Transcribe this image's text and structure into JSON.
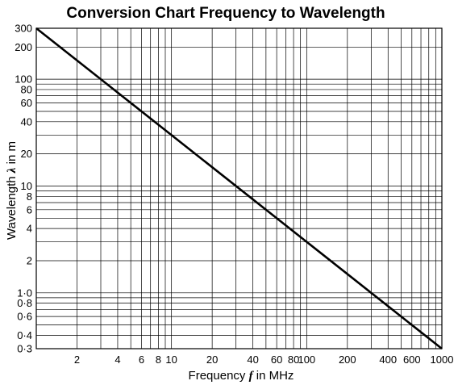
{
  "chart_data": {
    "type": "line",
    "title": "Conversion Chart Frequency to Wavelength",
    "xlabel": {
      "prefix": "Frequency ",
      "symbol": "f",
      "suffix": " in MHz"
    },
    "ylabel": {
      "prefix": "Wavelength ",
      "symbol": "λ",
      "suffix": " in m"
    },
    "x_scale": "log",
    "y_scale": "log",
    "xlim": [
      1,
      1000
    ],
    "ylim": [
      0.3,
      300
    ],
    "grid": true,
    "x_ticks": [
      {
        "value": 2,
        "label": "2"
      },
      {
        "value": 4,
        "label": "4"
      },
      {
        "value": 6,
        "label": "6"
      },
      {
        "value": 8,
        "label": "8"
      },
      {
        "value": 10,
        "label": "10"
      },
      {
        "value": 20,
        "label": "20"
      },
      {
        "value": 40,
        "label": "40"
      },
      {
        "value": 60,
        "label": "60"
      },
      {
        "value": 80,
        "label": "80"
      },
      {
        "value": 100,
        "label": "100"
      },
      {
        "value": 200,
        "label": "200"
      },
      {
        "value": 400,
        "label": "400"
      },
      {
        "value": 600,
        "label": "600"
      },
      {
        "value": 1000,
        "label": "1000"
      }
    ],
    "y_ticks": [
      {
        "value": 300,
        "label": "300"
      },
      {
        "value": 200,
        "label": "200"
      },
      {
        "value": 100,
        "label": "100"
      },
      {
        "value": 80,
        "label": "80"
      },
      {
        "value": 60,
        "label": "60"
      },
      {
        "value": 40,
        "label": "40"
      },
      {
        "value": 20,
        "label": "20"
      },
      {
        "value": 10,
        "label": "10"
      },
      {
        "value": 8,
        "label": "8"
      },
      {
        "value": 6,
        "label": "6"
      },
      {
        "value": 4,
        "label": "4"
      },
      {
        "value": 2,
        "label": "2"
      },
      {
        "value": 1,
        "label": "1·0"
      },
      {
        "value": 0.8,
        "label": "0·8"
      },
      {
        "value": 0.6,
        "label": "0·6"
      },
      {
        "value": 0.4,
        "label": "0·4"
      },
      {
        "value": 0.3,
        "label": "0·3"
      }
    ],
    "x_grid": [
      1,
      2,
      3,
      4,
      5,
      6,
      7,
      8,
      9,
      10,
      20,
      30,
      40,
      50,
      60,
      70,
      80,
      90,
      100,
      200,
      300,
      400,
      500,
      600,
      700,
      800,
      900,
      1000
    ],
    "y_grid": [
      0.3,
      0.4,
      0.5,
      0.6,
      0.7,
      0.8,
      0.9,
      1,
      2,
      3,
      4,
      5,
      6,
      7,
      8,
      9,
      10,
      20,
      30,
      40,
      50,
      60,
      70,
      80,
      90,
      100,
      200,
      300
    ],
    "series": [
      {
        "x": [
          1,
          1000
        ],
        "y": [
          300,
          0.3
        ]
      }
    ],
    "line_color": "#000000",
    "grid_color": "#000000"
  }
}
